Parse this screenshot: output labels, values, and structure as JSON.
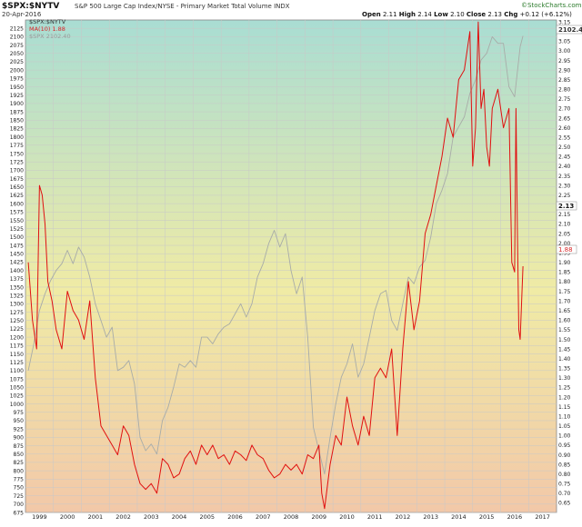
{
  "header": {
    "title": "$SPX:$NYTV",
    "subtitle": "S&P 500 Large Cap Index/NYSE - Primary Market Total Volume  INDX",
    "date": "20-Apr-2016",
    "ohlc": {
      "open_label": "Open",
      "open": "2.11",
      "high_label": "High",
      "high": "2.14",
      "low_label": "Low",
      "low": "2.10",
      "close_label": "Close",
      "close": "2.13",
      "chg_label": "Chg",
      "chg": "+0.12 (+6.12%)"
    },
    "brand": "©StockCharts.com"
  },
  "legend": [
    {
      "text": "$SPX:$NYTV",
      "color": "#333333"
    },
    {
      "text": "MA(10) 1.88",
      "color": "#d62728"
    },
    {
      "text": "$SPX 2102.40",
      "color": "#999999"
    }
  ],
  "axis_badges": {
    "spx": "2102.40",
    "ratio": "2.13",
    "ma": "1.88"
  },
  "colors": {
    "spx_line": "#a8aca8",
    "ma_line": "#e01010",
    "background_top": "#a9ddd3",
    "background_mid": "#f0eba5",
    "background_bottom": "#f2c8a8",
    "grid": "#c8c8c8"
  },
  "chart_data": {
    "type": "line",
    "title": "$SPX:$NYTV",
    "x_labels": [
      "1999",
      "2000",
      "2001",
      "2002",
      "2003",
      "2004",
      "2005",
      "2006",
      "2007",
      "2008",
      "2009",
      "2010",
      "2011",
      "2012",
      "2013",
      "2014",
      "2015",
      "2016",
      "2017"
    ],
    "left_axis": {
      "label": "",
      "ylim": [
        675,
        2150
      ],
      "ticks": [
        675,
        700,
        725,
        750,
        775,
        800,
        825,
        850,
        875,
        900,
        925,
        950,
        975,
        1000,
        1025,
        1050,
        1075,
        1100,
        1125,
        1150,
        1175,
        1200,
        1225,
        1250,
        1275,
        1300,
        1325,
        1350,
        1375,
        1400,
        1425,
        1450,
        1475,
        1500,
        1525,
        1550,
        1575,
        1600,
        1625,
        1650,
        1675,
        1700,
        1725,
        1750,
        1775,
        1800,
        1825,
        1850,
        1875,
        1900,
        1925,
        1950,
        1975,
        2000,
        2025,
        2050,
        2075,
        2100,
        2125
      ]
    },
    "right_axis": {
      "label": "",
      "ylim": [
        0.6,
        3.16
      ],
      "ticks": [
        0.65,
        0.7,
        0.75,
        0.8,
        0.85,
        0.9,
        0.95,
        1.0,
        1.05,
        1.1,
        1.15,
        1.2,
        1.25,
        1.3,
        1.35,
        1.4,
        1.45,
        1.5,
        1.55,
        1.6,
        1.65,
        1.7,
        1.75,
        1.8,
        1.85,
        1.9,
        1.95,
        2.0,
        2.05,
        2.1,
        2.15,
        2.2,
        2.25,
        2.3,
        2.35,
        2.4,
        2.45,
        2.5,
        2.55,
        2.6,
        2.65,
        2.7,
        2.75,
        2.8,
        2.85,
        2.9,
        2.95,
        3.0,
        3.05,
        3.1,
        3.15
      ]
    },
    "grid": true,
    "series": [
      {
        "name": "$SPX 2102.40",
        "axis": "left",
        "color": "#a8aca8",
        "x": [
          1998.6,
          1998.8,
          1999.0,
          1999.2,
          1999.4,
          1999.6,
          1999.8,
          2000.0,
          2000.2,
          2000.4,
          2000.6,
          2000.8,
          2001.0,
          2001.2,
          2001.4,
          2001.6,
          2001.8,
          2002.0,
          2002.2,
          2002.4,
          2002.6,
          2002.8,
          2003.0,
          2003.2,
          2003.4,
          2003.6,
          2003.8,
          2004.0,
          2004.2,
          2004.4,
          2004.6,
          2004.8,
          2005.0,
          2005.2,
          2005.4,
          2005.6,
          2005.8,
          2006.0,
          2006.2,
          2006.4,
          2006.6,
          2006.8,
          2007.0,
          2007.2,
          2007.4,
          2007.6,
          2007.8,
          2008.0,
          2008.2,
          2008.4,
          2008.6,
          2008.8,
          2009.0,
          2009.2,
          2009.4,
          2009.6,
          2009.8,
          2010.0,
          2010.2,
          2010.4,
          2010.6,
          2010.8,
          2011.0,
          2011.2,
          2011.4,
          2011.6,
          2011.8,
          2012.0,
          2012.2,
          2012.4,
          2012.6,
          2012.8,
          2013.0,
          2013.2,
          2013.4,
          2013.6,
          2013.8,
          2014.0,
          2014.2,
          2014.4,
          2014.6,
          2014.8,
          2015.0,
          2015.2,
          2015.4,
          2015.6,
          2015.8,
          2016.0,
          2016.2,
          2016.3
        ],
        "values": [
          1100,
          1180,
          1280,
          1330,
          1370,
          1400,
          1420,
          1460,
          1420,
          1470,
          1440,
          1380,
          1300,
          1250,
          1200,
          1230,
          1100,
          1110,
          1130,
          1060,
          900,
          860,
          880,
          850,
          950,
          990,
          1050,
          1120,
          1110,
          1130,
          1110,
          1200,
          1200,
          1180,
          1210,
          1230,
          1240,
          1270,
          1300,
          1260,
          1300,
          1380,
          1420,
          1480,
          1520,
          1470,
          1510,
          1400,
          1330,
          1380,
          1200,
          930,
          860,
          790,
          900,
          1000,
          1080,
          1120,
          1180,
          1080,
          1120,
          1200,
          1280,
          1330,
          1340,
          1250,
          1220,
          1300,
          1380,
          1360,
          1410,
          1430,
          1500,
          1600,
          1640,
          1690,
          1800,
          1830,
          1860,
          1930,
          1970,
          2030,
          2050,
          2100,
          2080,
          2080,
          1950,
          1920,
          2070,
          2102.4
        ]
      },
      {
        "name": "MA(10) 1.88",
        "axis": "right",
        "color": "#e01010",
        "x": [
          1998.6,
          1998.75,
          1998.9,
          1999.0,
          1999.1,
          1999.2,
          1999.3,
          1999.45,
          1999.6,
          1999.8,
          2000.0,
          2000.2,
          2000.4,
          2000.6,
          2000.8,
          2001.0,
          2001.2,
          2001.4,
          2001.6,
          2001.8,
          2002.0,
          2002.2,
          2002.4,
          2002.6,
          2002.8,
          2003.0,
          2003.2,
          2003.4,
          2003.6,
          2003.8,
          2004.0,
          2004.2,
          2004.4,
          2004.6,
          2004.8,
          2005.0,
          2005.2,
          2005.4,
          2005.6,
          2005.8,
          2006.0,
          2006.2,
          2006.4,
          2006.6,
          2006.8,
          2007.0,
          2007.2,
          2007.4,
          2007.6,
          2007.8,
          2008.0,
          2008.2,
          2008.4,
          2008.6,
          2008.8,
          2009.0,
          2009.1,
          2009.2,
          2009.4,
          2009.6,
          2009.8,
          2010.0,
          2010.2,
          2010.4,
          2010.6,
          2010.8,
          2011.0,
          2011.2,
          2011.4,
          2011.6,
          2011.8,
          2012.0,
          2012.2,
          2012.4,
          2012.6,
          2012.8,
          2013.0,
          2013.2,
          2013.4,
          2013.6,
          2013.8,
          2014.0,
          2014.2,
          2014.4,
          2014.5,
          2014.6,
          2014.7,
          2014.8,
          2014.9,
          2015.0,
          2015.1,
          2015.2,
          2015.4,
          2015.6,
          2015.8,
          2015.9,
          2016.0,
          2016.05,
          2016.1,
          2016.15,
          2016.2,
          2016.3
        ],
        "values": [
          1.9,
          1.6,
          1.45,
          2.3,
          2.25,
          2.1,
          1.8,
          1.7,
          1.55,
          1.45,
          1.75,
          1.65,
          1.6,
          1.5,
          1.7,
          1.3,
          1.05,
          1.0,
          0.95,
          0.9,
          1.05,
          1.0,
          0.85,
          0.75,
          0.72,
          0.75,
          0.7,
          0.88,
          0.85,
          0.78,
          0.8,
          0.88,
          0.92,
          0.85,
          0.95,
          0.9,
          0.95,
          0.88,
          0.9,
          0.85,
          0.92,
          0.9,
          0.87,
          0.95,
          0.9,
          0.88,
          0.82,
          0.78,
          0.8,
          0.85,
          0.82,
          0.85,
          0.8,
          0.9,
          0.88,
          0.95,
          0.7,
          0.62,
          0.85,
          1.0,
          0.95,
          1.2,
          1.05,
          0.95,
          1.1,
          1.0,
          1.3,
          1.35,
          1.3,
          1.45,
          1.0,
          1.45,
          1.8,
          1.55,
          1.7,
          2.05,
          2.15,
          2.3,
          2.45,
          2.65,
          2.55,
          2.85,
          2.9,
          3.1,
          2.4,
          2.6,
          3.15,
          2.7,
          2.8,
          2.5,
          2.4,
          2.7,
          2.8,
          2.6,
          2.7,
          1.9,
          1.85,
          2.7,
          2.05,
          1.55,
          1.5,
          1.88
        ]
      }
    ]
  }
}
